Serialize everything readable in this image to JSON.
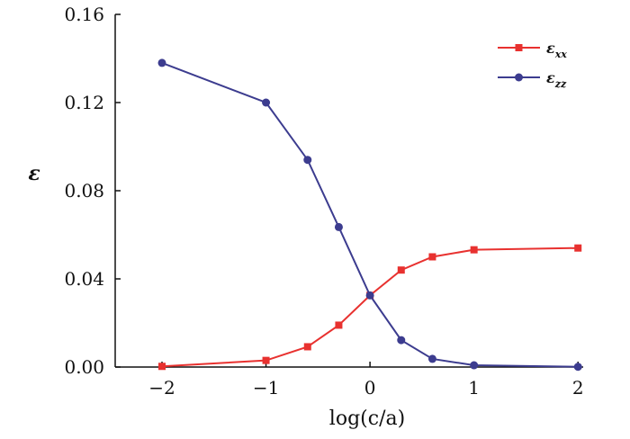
{
  "chart_data": {
    "type": "line",
    "title": "",
    "xlabel": "log(c/a)",
    "ylabel": "ε",
    "xlim": [
      -2.45,
      2.05
    ],
    "ylim": [
      0.0,
      0.16
    ],
    "xticks": [
      -2,
      -1,
      0,
      1,
      2
    ],
    "xtick_labels": [
      "−2",
      "−1",
      "0",
      "1",
      "2"
    ],
    "yticks": [
      0.0,
      0.04,
      0.08,
      0.12,
      0.16
    ],
    "ytick_labels": [
      "0.00",
      "0.04",
      "0.08",
      "0.12",
      "0.16"
    ],
    "grid": false,
    "legend_position": "top-right",
    "series": [
      {
        "name": "ε_xx",
        "legend_main": "ε",
        "legend_sub": "xx",
        "color": "#e8312f",
        "marker": "square",
        "x": [
          -2,
          -1,
          -0.6,
          -0.3,
          0,
          0.3,
          0.6,
          1,
          2
        ],
        "y": [
          0.0003,
          0.003,
          0.0092,
          0.019,
          0.0325,
          0.044,
          0.05,
          0.0532,
          0.054
        ]
      },
      {
        "name": "ε_zz",
        "legend_main": "ε",
        "legend_sub": "zz",
        "color": "#3c3c8f",
        "marker": "circle",
        "x": [
          -2,
          -1,
          -0.6,
          -0.3,
          0,
          0.3,
          0.6,
          1,
          2
        ],
        "y": [
          0.138,
          0.12,
          0.094,
          0.0635,
          0.0325,
          0.0122,
          0.0037,
          0.0008,
          0.0001
        ]
      }
    ]
  }
}
